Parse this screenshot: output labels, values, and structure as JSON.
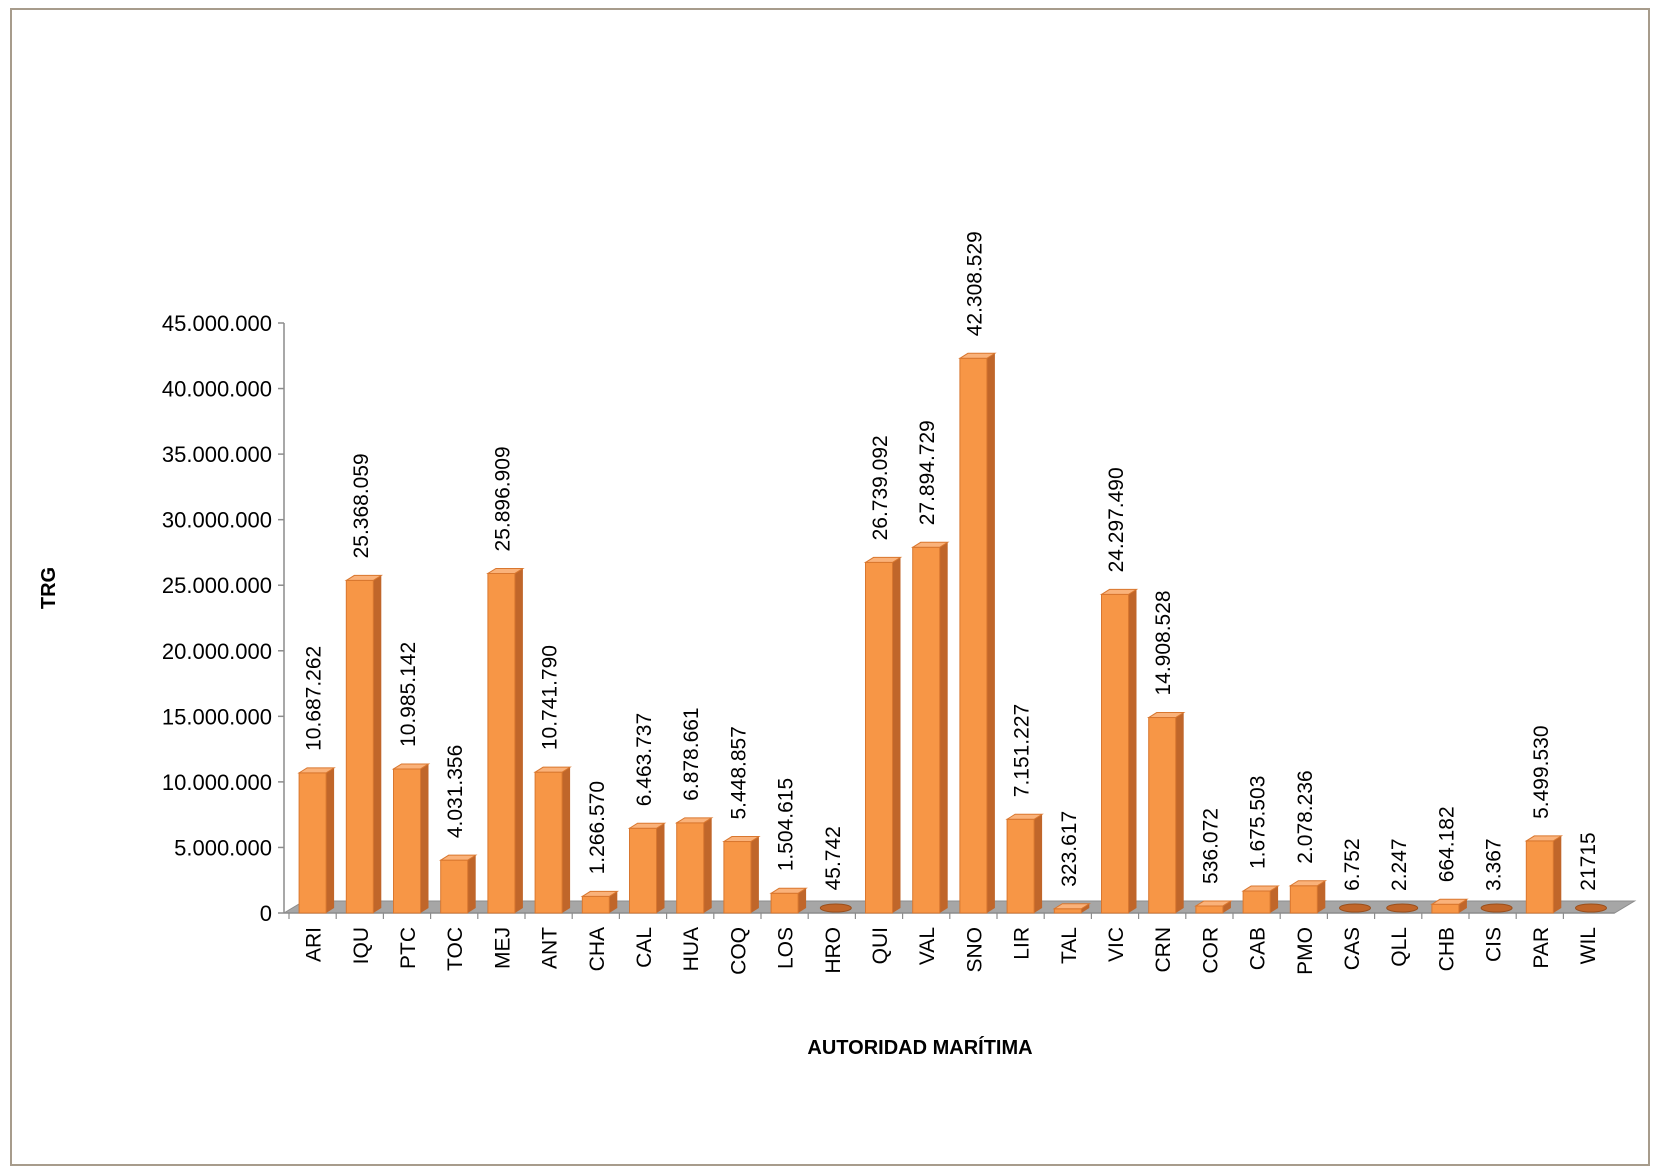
{
  "chart_data": {
    "type": "bar",
    "title": "",
    "xlabel": "AUTORIDAD MARÍTIMA",
    "ylabel": "TRG",
    "ylim": [
      0,
      45000000
    ],
    "yticks": [
      0,
      5000000,
      10000000,
      15000000,
      20000000,
      25000000,
      30000000,
      35000000,
      40000000,
      45000000
    ],
    "ytick_labels": [
      "0",
      "5.000.000",
      "10.000.000",
      "15.000.000",
      "20.000.000",
      "25.000.000",
      "30.000.000",
      "35.000.000",
      "40.000.000",
      "45.000.000"
    ],
    "categories": [
      "ARI",
      "IQU",
      "PTC",
      "TOC",
      "MEJ",
      "ANT",
      "CHA",
      "CAL",
      "HUA",
      "COQ",
      "LOS",
      "HRO",
      "QUI",
      "VAL",
      "SNO",
      "LIR",
      "TAL",
      "VIC",
      "CRN",
      "COR",
      "CAB",
      "PMO",
      "CAS",
      "QLL",
      "CHB",
      "CIS",
      "PAR",
      "WIL"
    ],
    "values": [
      10687262,
      25368059,
      10985142,
      4031356,
      25896909,
      10741790,
      1266570,
      6463737,
      6878661,
      5448857,
      1504615,
      45742,
      26739092,
      27894729,
      42308529,
      7151227,
      323617,
      24297490,
      14908528,
      536072,
      1675503,
      2078236,
      6752,
      2247,
      664182,
      3367,
      5499530,
      21715
    ],
    "data_labels": [
      "10.687.262",
      "25.368.059",
      "10.985.142",
      "4.031.356",
      "25.896.909",
      "10.741.790",
      "1.266.570",
      "6.463.737",
      "6.878.661",
      "5.448.857",
      "1.504.615",
      "45.742",
      "26.739.092",
      "27.894.729",
      "42.308.529",
      "7.151.227",
      "323.617",
      "24.297.490",
      "14.908.528",
      "536.072",
      "1.675.503",
      "2.078.236",
      "6.752",
      "2.247",
      "664.182",
      "3.367",
      "5.499.530",
      "21715"
    ],
    "legend": "none",
    "grid": false,
    "colors": {
      "bar": "#F79646",
      "bar_dark": "#C0662A",
      "bar_top": "#FAB27A",
      "floor": "#A6A6A6"
    }
  }
}
